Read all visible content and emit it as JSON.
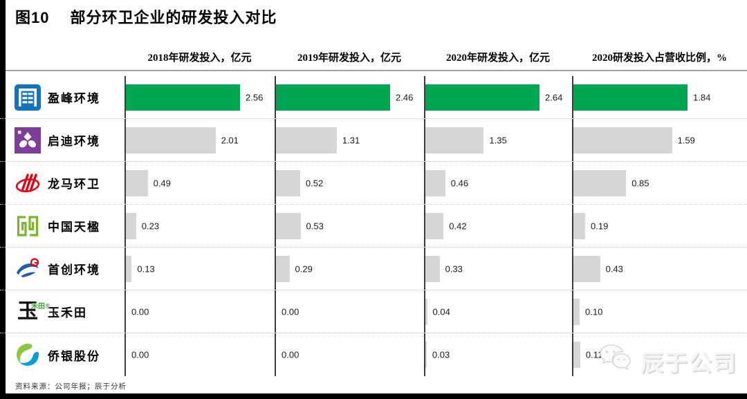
{
  "title": {
    "tag": "图10",
    "text": "部分环卫企业的研发投入对比"
  },
  "source_note": "资料来源：公司年报；辰于分析",
  "watermark": {
    "brand": "辰于公司",
    "icon": "wechat-icon"
  },
  "colors": {
    "highlight_bar": "#00A651",
    "default_bar": "#d6d6d6",
    "axis": "#3c3c3c",
    "header_rule": "#a0a0a0"
  },
  "chart_data": {
    "type": "bar",
    "orientation": "horizontal",
    "title": "图10 部分环卫企业的研发投入对比",
    "categories": [
      "盈峰环境",
      "启迪环境",
      "龙马环卫",
      "中国天楹",
      "首创环境",
      "玉禾田",
      "侨银股份"
    ],
    "highlight_category": "盈峰环境",
    "legend": "none",
    "grid": "off",
    "value_labels": "right-of-bar, 2 decimals",
    "series": [
      {
        "name": "2018年研发投入，亿元",
        "values": [
          2.56,
          2.01,
          0.49,
          0.23,
          0.13,
          0.0,
          0.0
        ]
      },
      {
        "name": "2019年研发投入，亿元",
        "values": [
          2.46,
          1.31,
          0.52,
          0.53,
          0.29,
          0.0,
          0.0
        ]
      },
      {
        "name": "2020年研发投入，亿元",
        "values": [
          2.64,
          1.35,
          0.46,
          0.42,
          0.33,
          0.04,
          0.03
        ]
      },
      {
        "name": "2020研发投入占营收比例，%",
        "values": [
          1.84,
          1.59,
          0.85,
          0.19,
          0.43,
          0.1,
          0.11
        ]
      }
    ]
  }
}
